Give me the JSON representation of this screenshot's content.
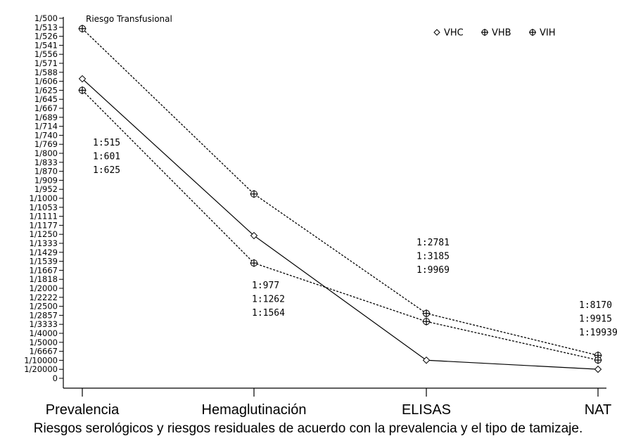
{
  "chart_data": {
    "type": "line",
    "title": "Riesgo Transfusional",
    "caption": "Riesgos serológicos y riesgos residuales de acuerdo con la prevalencia y el tipo de tamizaje.",
    "categories": [
      "Prevalencia",
      "Hemaglutinación",
      "ELISAS",
      "NAT"
    ],
    "yscale": "reciprocal-risk",
    "y_ticks": [
      "1/500",
      "1/513",
      "1/526",
      "1/541",
      "1/556",
      "1/571",
      "1/588",
      "1/606",
      "1/625",
      "1/645",
      "1/667",
      "1/689",
      "1/714",
      "1/740",
      "1/769",
      "1/800",
      "1/833",
      "1/870",
      "1/909",
      "1/952",
      "1/1000",
      "1/1053",
      "1/1111",
      "1/1177",
      "1/1250",
      "1/1333",
      "1/1429",
      "1/1539",
      "1/1667",
      "1/1818",
      "1/2000",
      "1/2222",
      "1/2500",
      "1/2857",
      "1/3333",
      "1/4000",
      "1/5000",
      "1/6667",
      "1/10000",
      "1/20000",
      "0"
    ],
    "series": [
      {
        "name": "VHC",
        "marker": "diamond",
        "line": "solid",
        "values": [
          "1/601",
          "1/1262",
          "1/9969",
          "1/19939"
        ]
      },
      {
        "name": "VHB",
        "marker": "cross-circle",
        "line": "dashed",
        "values": [
          "1/515",
          "1/977",
          "1/2781",
          "1/8170"
        ]
      },
      {
        "name": "VIH",
        "marker": "cross-circle",
        "line": "dashed",
        "values": [
          "1/625",
          "1/1564",
          "1/3185",
          "1/9915"
        ]
      }
    ],
    "annotations": [
      {
        "category": "Prevalencia",
        "lines": [
          "1:515",
          "1:601",
          "1:625"
        ]
      },
      {
        "category": "Hemaglutinación",
        "lines": [
          "1:977",
          "1:1262",
          "1:1564"
        ]
      },
      {
        "category": "ELISAS",
        "lines": [
          "1:2781",
          "1:3185",
          "1:9969"
        ]
      },
      {
        "category": "NAT",
        "lines": [
          "1:8170",
          "1:9915",
          "1:19939"
        ]
      }
    ],
    "legend": {
      "position": "top-right",
      "items": [
        "VHC",
        "VHB",
        "VIH"
      ]
    },
    "grid": false
  }
}
